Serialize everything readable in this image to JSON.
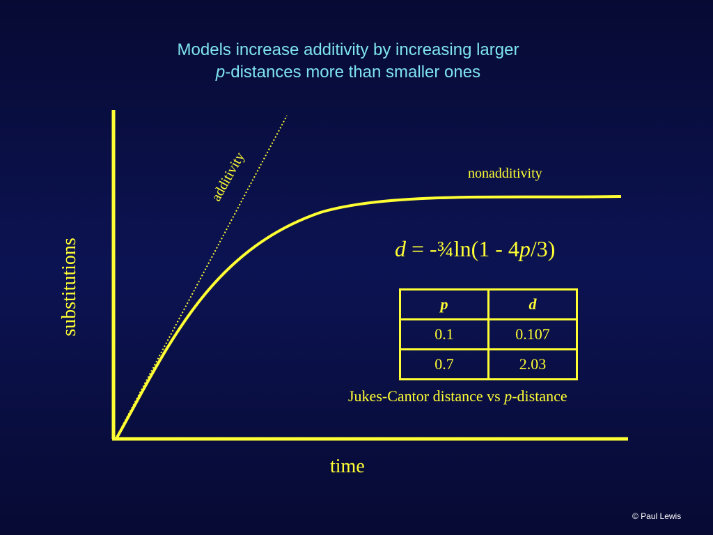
{
  "title": {
    "line1": "Models increase additivity by increasing larger",
    "line2_italic": "p",
    "line2_rest": "-distances more than smaller ones"
  },
  "axes": {
    "ylabel": "substitutions",
    "xlabel": "time"
  },
  "curves": {
    "additivity_label": "additivity",
    "nonadditivity_label": "nonadditivity"
  },
  "formula": {
    "d": "d",
    "eq": " = -¾ln(1 - 4",
    "p": "p",
    "tail": "/3)"
  },
  "table": {
    "headers": [
      "p",
      "d"
    ],
    "rows": [
      [
        "0.1",
        "0.107"
      ],
      [
        "0.7",
        "2.03"
      ]
    ]
  },
  "caption": {
    "pre": "Jukes-Cantor distance vs ",
    "p": "p",
    "post": "-distance"
  },
  "credit": "© Paul Lewis",
  "colors": {
    "accent": "#ffff33",
    "title": "#7fe3f0",
    "background": "#0a0f45"
  }
}
